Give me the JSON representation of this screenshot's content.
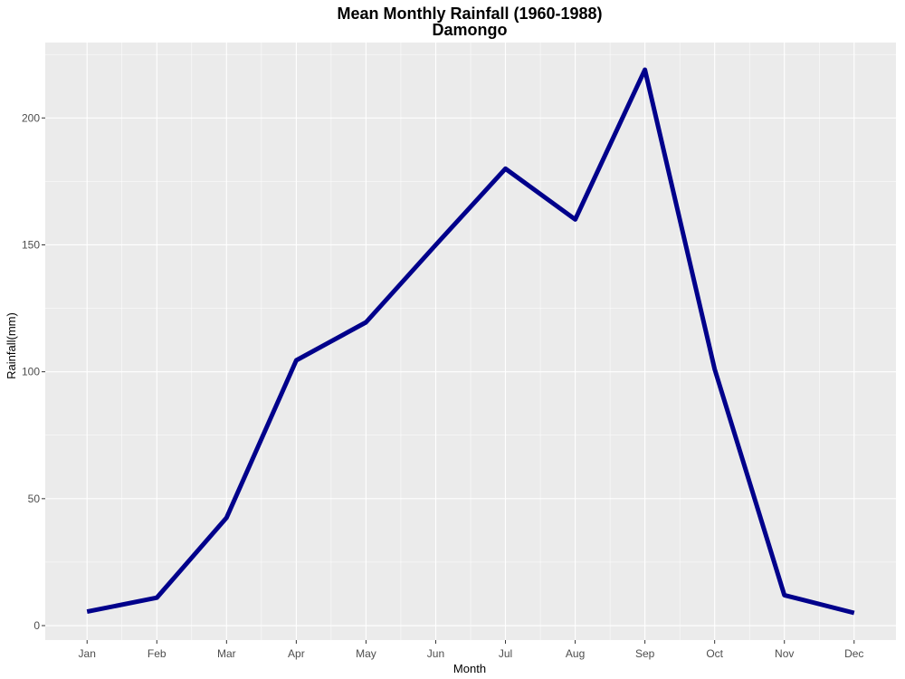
{
  "chart_data": {
    "type": "line",
    "title": "Mean Monthly Rainfall (1960-1988)",
    "subtitle": "Damongo",
    "xlabel": "Month",
    "ylabel": "Rainfall(mm)",
    "categories": [
      "Jan",
      "Feb",
      "Mar",
      "Apr",
      "May",
      "Jun",
      "Jul",
      "Aug",
      "Sep",
      "Oct",
      "Nov",
      "Dec"
    ],
    "series": [
      {
        "values": [
          5.5,
          11,
          42.5,
          104.5,
          119.5,
          150,
          180,
          160,
          219,
          101,
          12,
          5
        ],
        "color": "#00008b"
      }
    ],
    "yticks": [
      0,
      50,
      100,
      150,
      200
    ],
    "ylim": [
      -5.7,
      229.7
    ],
    "grid": true,
    "background": "#ebebeb",
    "grid_color": "#ffffff"
  }
}
